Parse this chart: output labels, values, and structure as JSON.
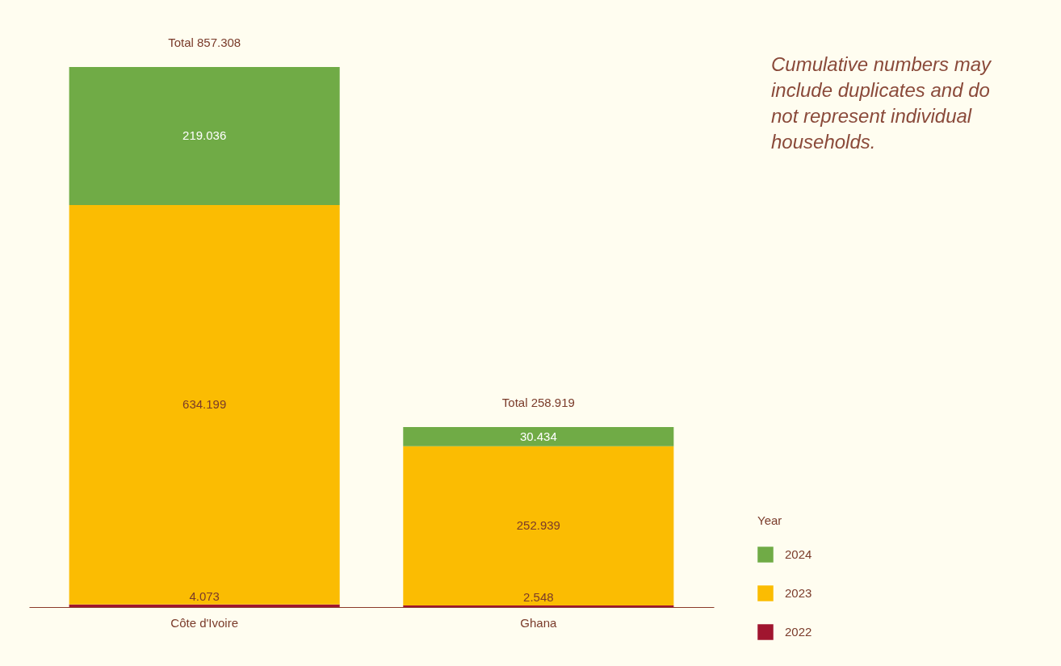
{
  "chart_data": {
    "type": "bar",
    "stacked": true,
    "data_labels": true,
    "legend": "bottom right",
    "legend_title": "Year",
    "categories": [
      "Côte d'Ivoire",
      "Ghana"
    ],
    "series": [
      {
        "name": "2022",
        "color": "#a0152f",
        "values": [
          4.073,
          2.548
        ]
      },
      {
        "name": "2023",
        "color": "#fbbc02",
        "values": [
          634.199,
          252.939
        ]
      },
      {
        "name": "2024",
        "color": "#70ab46",
        "values": [
          219.036,
          30.434
        ]
      }
    ],
    "totals": [
      "Total 857.308",
      "Total 258.919"
    ],
    "annotations": [
      "Cumulative numbers may include duplicates and do not represent individual households."
    ]
  }
}
